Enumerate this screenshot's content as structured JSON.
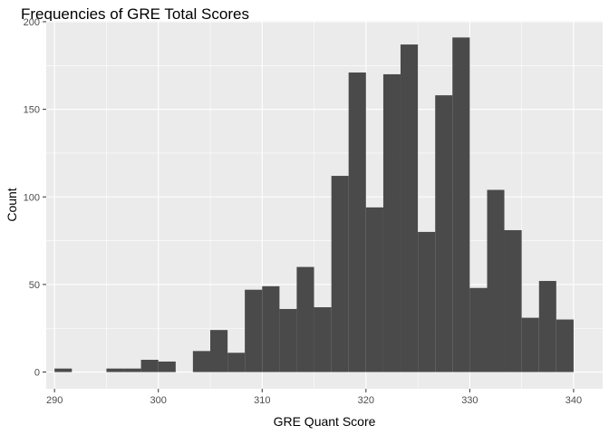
{
  "chart_data": {
    "type": "bar",
    "subtype": "histogram",
    "title": "Frequencies of GRE Total Scores",
    "xlabel": "GRE Quant Score",
    "ylabel": "Count",
    "xlim": [
      289.2,
      342.8
    ],
    "ylim": [
      -9.55,
      200.5
    ],
    "x_ticks": [
      290,
      300,
      310,
      320,
      330,
      340
    ],
    "y_ticks": [
      0,
      50,
      100,
      150,
      200
    ],
    "bin_width": 1.6667,
    "bins": [
      {
        "x0": 290.0,
        "x1": 291.67,
        "count": 2
      },
      {
        "x0": 291.67,
        "x1": 293.33,
        "count": 0
      },
      {
        "x0": 293.33,
        "x1": 295.0,
        "count": 0
      },
      {
        "x0": 295.0,
        "x1": 296.67,
        "count": 2
      },
      {
        "x0": 296.67,
        "x1": 298.33,
        "count": 2
      },
      {
        "x0": 298.33,
        "x1": 300.0,
        "count": 7
      },
      {
        "x0": 300.0,
        "x1": 301.67,
        "count": 6
      },
      {
        "x0": 301.67,
        "x1": 303.33,
        "count": 0
      },
      {
        "x0": 303.33,
        "x1": 305.0,
        "count": 12
      },
      {
        "x0": 305.0,
        "x1": 306.67,
        "count": 24
      },
      {
        "x0": 306.67,
        "x1": 308.33,
        "count": 11
      },
      {
        "x0": 308.33,
        "x1": 310.0,
        "count": 47
      },
      {
        "x0": 310.0,
        "x1": 311.67,
        "count": 49
      },
      {
        "x0": 311.67,
        "x1": 313.33,
        "count": 36
      },
      {
        "x0": 313.33,
        "x1": 315.0,
        "count": 60
      },
      {
        "x0": 315.0,
        "x1": 316.67,
        "count": 37
      },
      {
        "x0": 316.67,
        "x1": 318.33,
        "count": 112
      },
      {
        "x0": 318.33,
        "x1": 320.0,
        "count": 171
      },
      {
        "x0": 320.0,
        "x1": 321.67,
        "count": 94
      },
      {
        "x0": 321.67,
        "x1": 323.33,
        "count": 170
      },
      {
        "x0": 323.33,
        "x1": 325.0,
        "count": 187
      },
      {
        "x0": 325.0,
        "x1": 326.67,
        "count": 80
      },
      {
        "x0": 326.67,
        "x1": 328.33,
        "count": 158
      },
      {
        "x0": 328.33,
        "x1": 330.0,
        "count": 191
      },
      {
        "x0": 330.0,
        "x1": 331.67,
        "count": 48
      },
      {
        "x0": 331.67,
        "x1": 333.33,
        "count": 104
      },
      {
        "x0": 333.33,
        "x1": 335.0,
        "count": 81
      },
      {
        "x0": 335.0,
        "x1": 336.67,
        "count": 31
      },
      {
        "x0": 336.67,
        "x1": 338.33,
        "count": 52
      },
      {
        "x0": 338.33,
        "x1": 340.0,
        "count": 30
      }
    ],
    "grid": true,
    "legend": "none",
    "colors": {
      "panel_background": "#ebebeb",
      "gridline": "#ffffff",
      "bar_fill": "#4a4a4a",
      "tick_label": "#4d4d4d",
      "tick_mark": "#333333",
      "text": "#000000"
    }
  }
}
